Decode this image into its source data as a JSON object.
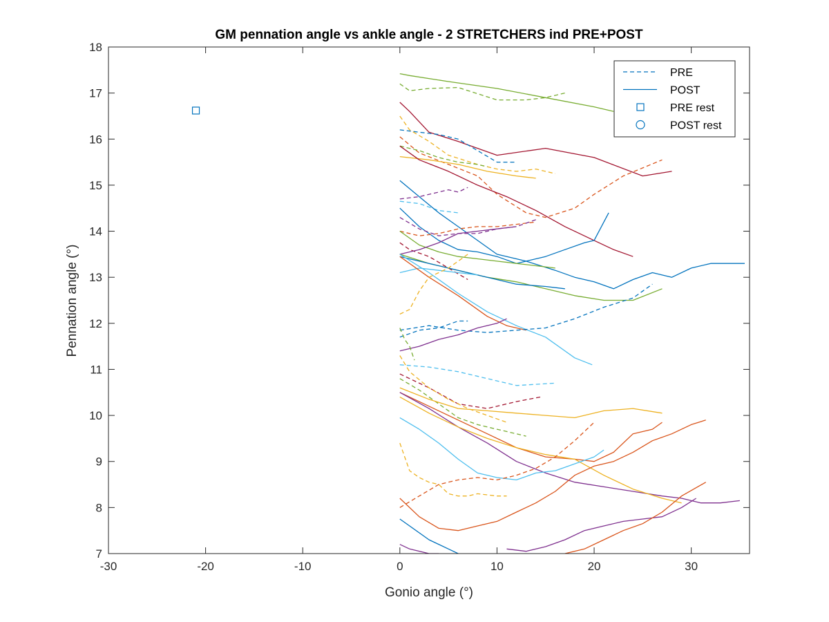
{
  "chart_data": {
    "type": "line",
    "title": "GM pennation angle vs ankle angle - 2 STRETCHERS ind PRE+POST",
    "xlabel": "Gonio angle (°)",
    "ylabel": "Pennation angle (°)",
    "xlim": [
      -30,
      36
    ],
    "ylim": [
      7,
      18
    ],
    "xticks": [
      "-30",
      "-20",
      "-10",
      "0",
      "10",
      "20",
      "30"
    ],
    "yticks": [
      "7",
      "8",
      "9",
      "10",
      "11",
      "12",
      "13",
      "14",
      "15",
      "16",
      "17",
      "18"
    ],
    "grid": false,
    "legend_placement": "top-right",
    "legend": [
      {
        "label": "PRE",
        "style": "dashed",
        "marker": "none",
        "color": "#0072BD"
      },
      {
        "label": "POST",
        "style": "solid",
        "marker": "none",
        "color": "#0072BD"
      },
      {
        "label": "PRE rest",
        "style": "none",
        "marker": "square",
        "color": "#0072BD"
      },
      {
        "label": "POST rest",
        "style": "none",
        "marker": "circle",
        "color": "#0072BD"
      }
    ],
    "rest_points": [
      {
        "type": "PRE rest",
        "x": -21,
        "y": 16.62,
        "color": "#0072BD"
      }
    ],
    "series": [
      {
        "style": "solid",
        "color": "#77AC30",
        "x": [
          0,
          1,
          5,
          10,
          15,
          20,
          22
        ],
        "y": [
          17.42,
          17.38,
          17.25,
          17.1,
          16.9,
          16.7,
          16.6
        ]
      },
      {
        "style": "dashed",
        "color": "#77AC30",
        "x": [
          0,
          1,
          3,
          6,
          10,
          13,
          15,
          17
        ],
        "y": [
          17.2,
          17.05,
          17.1,
          17.12,
          16.85,
          16.85,
          16.9,
          17.0
        ]
      },
      {
        "style": "solid",
        "color": "#A2142F",
        "x": [
          0,
          1,
          3,
          6,
          10,
          15,
          20,
          25,
          28
        ],
        "y": [
          16.8,
          16.6,
          16.15,
          15.95,
          15.65,
          15.8,
          15.6,
          15.2,
          15.3
        ]
      },
      {
        "style": "dashed",
        "color": "#0072BD",
        "x": [
          0,
          2,
          4,
          6,
          8,
          10,
          12
        ],
        "y": [
          16.2,
          16.15,
          16.1,
          16.0,
          15.75,
          15.5,
          15.5
        ]
      },
      {
        "style": "dashed",
        "color": "#EDB120",
        "x": [
          0,
          1,
          3,
          5,
          8,
          10,
          12,
          14,
          16
        ],
        "y": [
          16.5,
          16.2,
          15.95,
          15.65,
          15.45,
          15.35,
          15.3,
          15.35,
          15.25
        ]
      },
      {
        "style": "dashed",
        "color": "#D95319",
        "x": [
          0,
          2,
          5,
          8,
          10,
          13,
          15,
          18,
          20,
          23,
          27
        ],
        "y": [
          16.05,
          15.7,
          15.45,
          15.2,
          14.8,
          14.4,
          14.3,
          14.5,
          14.8,
          15.2,
          15.55
        ]
      },
      {
        "style": "dashed",
        "color": "#77AC30",
        "x": [
          0,
          2,
          4,
          6,
          8,
          9
        ],
        "y": [
          15.85,
          15.75,
          15.6,
          15.5,
          15.45,
          15.4
        ]
      },
      {
        "style": "solid",
        "color": "#EDB120",
        "x": [
          0,
          3,
          6,
          9,
          12,
          14
        ],
        "y": [
          15.62,
          15.55,
          15.45,
          15.3,
          15.2,
          15.15
        ]
      },
      {
        "style": "solid",
        "color": "#A2142F",
        "x": [
          0,
          2,
          5,
          8,
          11,
          14,
          17,
          20,
          22,
          24
        ],
        "y": [
          15.85,
          15.55,
          15.3,
          15.0,
          14.75,
          14.45,
          14.1,
          13.8,
          13.6,
          13.45
        ]
      },
      {
        "style": "dashed",
        "color": "#7E2F8E",
        "x": [
          0,
          2,
          4,
          5,
          6,
          7
        ],
        "y": [
          14.7,
          14.75,
          14.85,
          14.9,
          14.85,
          14.95
        ]
      },
      {
        "style": "dashed",
        "color": "#4DBEEE",
        "x": [
          0,
          2,
          4,
          6
        ],
        "y": [
          14.65,
          14.6,
          14.45,
          14.4
        ]
      },
      {
        "style": "solid",
        "color": "#0072BD",
        "x": [
          0,
          2,
          4,
          6,
          8,
          10,
          13,
          16,
          18,
          20,
          22,
          24,
          26,
          28,
          30,
          32,
          35.5
        ],
        "y": [
          15.1,
          14.75,
          14.4,
          14.1,
          13.8,
          13.5,
          13.35,
          13.15,
          13.0,
          12.9,
          12.75,
          12.95,
          13.1,
          13.0,
          13.2,
          13.3,
          13.3
        ]
      },
      {
        "style": "solid",
        "color": "#0072BD",
        "x": [
          0,
          2,
          4,
          6,
          8,
          10,
          12,
          15,
          17,
          19,
          20,
          21,
          21.5
        ],
        "y": [
          14.5,
          14.1,
          13.8,
          13.6,
          13.55,
          13.45,
          13.3,
          13.45,
          13.6,
          13.75,
          13.8,
          14.2,
          14.4
        ]
      },
      {
        "style": "dashed",
        "color": "#D95319",
        "x": [
          0,
          2,
          4,
          6,
          8,
          10,
          12,
          14
        ],
        "y": [
          14.0,
          13.9,
          13.95,
          14.05,
          14.1,
          14.1,
          14.15,
          14.2
        ]
      },
      {
        "style": "dashed",
        "color": "#7E2F8E",
        "x": [
          0,
          2,
          4,
          6,
          8,
          10,
          12,
          14
        ],
        "y": [
          14.3,
          14.05,
          13.9,
          13.95,
          13.95,
          14.05,
          14.1,
          14.25
        ]
      },
      {
        "style": "dashed",
        "color": "#A2142F",
        "x": [
          0,
          1,
          3,
          5,
          7
        ],
        "y": [
          13.75,
          13.6,
          13.45,
          13.2,
          12.95
        ]
      },
      {
        "style": "solid",
        "color": "#77AC30",
        "x": [
          0,
          2,
          4,
          6,
          8,
          10,
          12,
          14,
          16
        ],
        "y": [
          14.0,
          13.7,
          13.55,
          13.45,
          13.4,
          13.35,
          13.3,
          13.25,
          13.2
        ]
      },
      {
        "style": "solid",
        "color": "#7E2F8E",
        "x": [
          0,
          2,
          4,
          6,
          8,
          10,
          12
        ],
        "y": [
          13.5,
          13.6,
          13.75,
          13.95,
          14.0,
          14.05,
          14.1
        ]
      },
      {
        "style": "solid",
        "color": "#77AC30",
        "x": [
          0,
          3,
          6,
          9,
          12,
          15,
          18,
          21,
          24,
          27
        ],
        "y": [
          13.5,
          13.3,
          13.15,
          13.0,
          12.9,
          12.75,
          12.6,
          12.5,
          12.5,
          12.75
        ]
      },
      {
        "style": "solid",
        "color": "#0072BD",
        "x": [
          0,
          3,
          6,
          9,
          12,
          15,
          17
        ],
        "y": [
          13.45,
          13.3,
          13.15,
          13.0,
          12.85,
          12.8,
          12.75
        ]
      },
      {
        "style": "solid",
        "color": "#4DBEEE",
        "x": [
          0,
          2,
          4,
          6,
          8
        ],
        "y": [
          13.1,
          13.2,
          13.15,
          13.1,
          13.05
        ]
      },
      {
        "style": "solid",
        "color": "#4DBEEE",
        "x": [
          0,
          3,
          6,
          9,
          12,
          15,
          18,
          19.8
        ],
        "y": [
          13.5,
          13.1,
          12.65,
          12.25,
          11.95,
          11.7,
          11.25,
          11.1
        ]
      },
      {
        "style": "solid",
        "color": "#D95319",
        "x": [
          0,
          3,
          6,
          9,
          11,
          13
        ],
        "y": [
          13.45,
          13.0,
          12.6,
          12.15,
          11.95,
          11.85
        ]
      },
      {
        "style": "dashed",
        "color": "#EDB120",
        "x": [
          0,
          1,
          2,
          3,
          4,
          5,
          6,
          7
        ],
        "y": [
          12.2,
          12.3,
          12.7,
          13.0,
          13.1,
          13.2,
          13.35,
          13.5
        ]
      },
      {
        "style": "dashed",
        "color": "#0072BD",
        "x": [
          0,
          3,
          6,
          9,
          12,
          15,
          18,
          21,
          24,
          26
        ],
        "y": [
          11.85,
          11.95,
          11.85,
          11.8,
          11.85,
          11.9,
          12.1,
          12.35,
          12.55,
          12.85
        ]
      },
      {
        "style": "solid",
        "color": "#7E2F8E",
        "x": [
          0,
          2,
          4,
          6,
          8,
          10,
          11
        ],
        "y": [
          11.4,
          11.5,
          11.65,
          11.75,
          11.9,
          12.0,
          12.1
        ]
      },
      {
        "style": "dashed",
        "color": "#0072BD",
        "x": [
          0,
          2,
          4,
          6,
          7
        ],
        "y": [
          11.7,
          11.85,
          11.9,
          12.05,
          12.05
        ]
      },
      {
        "style": "dashed",
        "color": "#77AC30",
        "x": [
          0,
          0.5,
          1,
          1.5
        ],
        "y": [
          11.9,
          11.65,
          11.5,
          11.2
        ]
      },
      {
        "style": "dashed",
        "color": "#4DBEEE",
        "x": [
          0,
          3,
          6,
          9,
          12,
          16
        ],
        "y": [
          11.1,
          11.05,
          10.95,
          10.8,
          10.65,
          10.7
        ]
      },
      {
        "style": "dashed",
        "color": "#A2142F",
        "x": [
          0,
          3,
          6,
          9,
          12,
          14.5
        ],
        "y": [
          10.9,
          10.6,
          10.25,
          10.15,
          10.3,
          10.4
        ]
      },
      {
        "style": "dashed",
        "color": "#EDB120",
        "x": [
          0,
          1,
          3,
          5,
          7,
          9,
          11
        ],
        "y": [
          11.3,
          10.95,
          10.6,
          10.35,
          10.15,
          10.0,
          9.85
        ]
      },
      {
        "style": "dashed",
        "color": "#77AC30",
        "x": [
          0,
          2,
          4,
          6,
          8,
          10,
          12,
          13
        ],
        "y": [
          10.8,
          10.55,
          10.25,
          9.95,
          9.8,
          9.7,
          9.6,
          9.55
        ]
      },
      {
        "style": "solid",
        "color": "#EDB120",
        "x": [
          0,
          3,
          6,
          9,
          12,
          15,
          18,
          21,
          24,
          27
        ],
        "y": [
          10.6,
          10.35,
          10.15,
          10.1,
          10.05,
          10.0,
          9.95,
          10.1,
          10.15,
          10.05
        ]
      },
      {
        "style": "solid",
        "color": "#D95319",
        "x": [
          0,
          3,
          6,
          9,
          12,
          15,
          18,
          20,
          22,
          24,
          26,
          27
        ],
        "y": [
          10.5,
          10.2,
          9.9,
          9.6,
          9.3,
          9.1,
          9.05,
          9.0,
          9.2,
          9.6,
          9.7,
          9.85
        ]
      },
      {
        "style": "solid",
        "color": "#7E2F8E",
        "x": [
          0,
          3,
          6,
          9,
          12,
          15,
          18,
          21,
          24,
          27,
          29,
          31,
          33,
          35
        ],
        "y": [
          10.5,
          10.15,
          9.75,
          9.4,
          9.0,
          8.75,
          8.55,
          8.45,
          8.35,
          8.25,
          8.2,
          8.1,
          8.1,
          8.15
        ]
      },
      {
        "style": "solid",
        "color": "#EDB120",
        "x": [
          0,
          3,
          6,
          9,
          12,
          15,
          18,
          21,
          24,
          27,
          29
        ],
        "y": [
          10.4,
          10.05,
          9.75,
          9.5,
          9.3,
          9.15,
          9.05,
          8.7,
          8.4,
          8.2,
          8.1
        ]
      },
      {
        "style": "solid",
        "color": "#4DBEEE",
        "x": [
          0,
          2,
          4,
          6,
          8,
          10,
          12,
          14,
          16,
          18,
          20,
          21
        ],
        "y": [
          9.95,
          9.7,
          9.4,
          9.05,
          8.75,
          8.65,
          8.6,
          8.75,
          8.8,
          8.95,
          9.1,
          9.25
        ]
      },
      {
        "style": "dashed",
        "color": "#D95319",
        "x": [
          0,
          2,
          4,
          6,
          8,
          10,
          12,
          14,
          16,
          18,
          20
        ],
        "y": [
          8.0,
          8.25,
          8.5,
          8.6,
          8.65,
          8.6,
          8.7,
          8.85,
          9.1,
          9.45,
          9.85
        ]
      },
      {
        "style": "dashed",
        "color": "#EDB120",
        "x": [
          0,
          0.5,
          1,
          2,
          3,
          4,
          5,
          6,
          7,
          8,
          10,
          11
        ],
        "y": [
          9.4,
          9.1,
          8.8,
          8.65,
          8.55,
          8.5,
          8.3,
          8.25,
          8.25,
          8.3,
          8.25,
          8.25
        ]
      },
      {
        "style": "solid",
        "color": "#D95319",
        "x": [
          0,
          2,
          4,
          6,
          8,
          10,
          12,
          14,
          16,
          18,
          20,
          22,
          24,
          26,
          28,
          30,
          31.5
        ],
        "y": [
          8.2,
          7.8,
          7.55,
          7.5,
          7.6,
          7.7,
          7.9,
          8.1,
          8.35,
          8.7,
          8.9,
          9.0,
          9.2,
          9.45,
          9.6,
          9.8,
          9.9
        ]
      },
      {
        "style": "solid",
        "color": "#0072BD",
        "x": [
          0,
          1,
          3,
          5,
          6
        ],
        "y": [
          7.75,
          7.6,
          7.3,
          7.1,
          7.0
        ]
      },
      {
        "style": "solid",
        "color": "#7E2F8E",
        "x": [
          0,
          1,
          3,
          4
        ],
        "y": [
          7.2,
          7.1,
          7.0,
          7.0
        ]
      },
      {
        "style": "solid",
        "color": "#7E2F8E",
        "x": [
          11,
          13,
          15,
          17,
          19,
          21,
          23,
          25,
          27,
          29,
          30.5
        ],
        "y": [
          7.1,
          7.05,
          7.15,
          7.3,
          7.5,
          7.6,
          7.7,
          7.75,
          7.8,
          8.0,
          8.2
        ]
      },
      {
        "style": "solid",
        "color": "#D95319",
        "x": [
          17,
          19,
          21,
          23,
          25,
          27,
          29,
          31.5
        ],
        "y": [
          7.0,
          7.1,
          7.3,
          7.5,
          7.65,
          7.9,
          8.25,
          8.55
        ]
      }
    ]
  }
}
